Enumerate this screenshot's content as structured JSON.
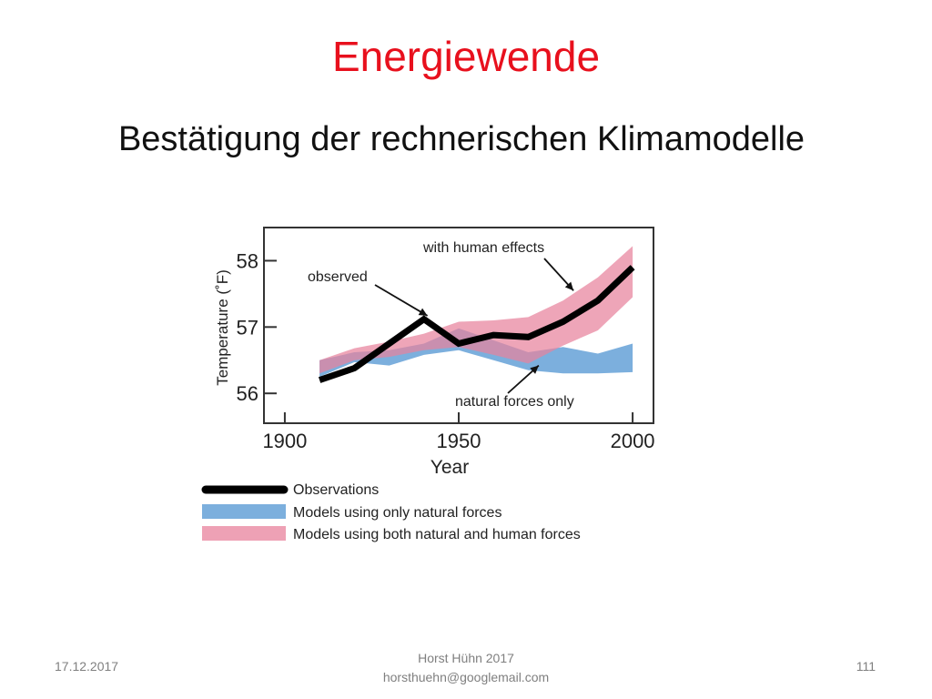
{
  "slide": {
    "title": "Energiewende",
    "subtitle": "Bestätigung der rechnerischen Klimamodelle"
  },
  "footer": {
    "date": "17.12.2017",
    "author": "Horst Hühn 2017",
    "email": "horsthuehn@googlemail.com",
    "page": "111"
  },
  "chart_data": {
    "type": "line",
    "title": "",
    "xlabel": "Year",
    "ylabel": "Temperature (˚F)",
    "xlim": [
      1894,
      2006
    ],
    "ylim": [
      55.55,
      58.5
    ],
    "x_ticks": [
      1900,
      1950,
      2000
    ],
    "y_ticks": [
      56,
      57,
      58
    ],
    "grid": false,
    "legend_position": "bottom",
    "colors": {
      "observations": "#000000",
      "natural": "#5b9bd5",
      "human": "#e8829c"
    },
    "series": [
      {
        "name": "Observations",
        "x": [
          1910,
          1920,
          1930,
          1940,
          1950,
          1960,
          1970,
          1980,
          1990,
          2000
        ],
        "y": [
          56.2,
          56.38,
          56.75,
          57.12,
          56.75,
          56.88,
          56.85,
          57.08,
          57.4,
          57.9
        ]
      },
      {
        "name": "Models using only natural forces",
        "x": [
          1910,
          1920,
          1930,
          1940,
          1950,
          1960,
          1970,
          1980,
          1990,
          2000
        ],
        "lower": [
          56.25,
          56.47,
          56.42,
          56.58,
          56.65,
          56.5,
          56.35,
          56.3,
          56.3,
          56.32
        ],
        "upper": [
          56.5,
          56.62,
          56.65,
          56.75,
          56.98,
          56.8,
          56.62,
          56.7,
          56.6,
          56.75
        ]
      },
      {
        "name": "Models using both natural and human forces",
        "x": [
          1910,
          1920,
          1930,
          1940,
          1950,
          1960,
          1970,
          1980,
          1990,
          2000
        ],
        "lower": [
          56.3,
          56.5,
          56.55,
          56.65,
          56.7,
          56.58,
          56.45,
          56.72,
          56.95,
          57.45
        ],
        "upper": [
          56.5,
          56.68,
          56.78,
          56.9,
          57.08,
          57.1,
          57.15,
          57.4,
          57.75,
          58.22
        ]
      }
    ],
    "annotations": [
      {
        "text": "with human effects",
        "target": [
          1983,
          57.55
        ]
      },
      {
        "text": "observed",
        "target": [
          1941,
          57.17
        ]
      },
      {
        "text": "natural forces only",
        "target": [
          1973,
          56.42
        ]
      }
    ]
  }
}
